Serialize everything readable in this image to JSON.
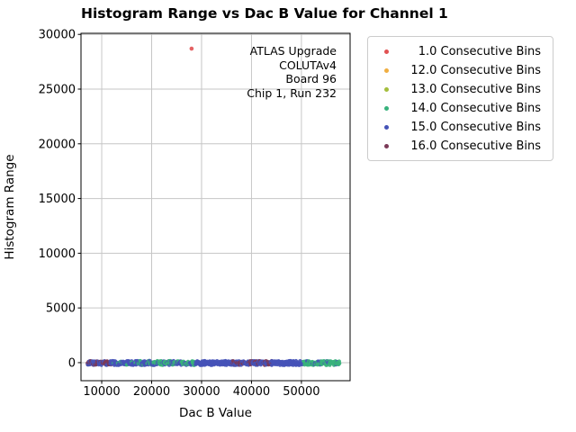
{
  "chart_data": {
    "type": "scatter",
    "title": "Histogram Range vs Dac B Value for Channel 1",
    "xlabel": "Dac B Value",
    "ylabel": "Histogram Range",
    "xlim": [
      5850,
      59750
    ],
    "ylim": [
      -1650,
      30100
    ],
    "x_ticks": [
      10000,
      20000,
      30000,
      40000,
      50000
    ],
    "y_ticks": [
      0,
      5000,
      10000,
      15000,
      20000,
      25000,
      30000
    ],
    "grid": true,
    "grid_color": "#c6c6c6",
    "legend_position": "outside-upper-right",
    "series": [
      {
        "name": "1.0 Consecutive Bins",
        "color": "#e15152",
        "points": [
          [
            28000,
            28700
          ]
        ]
      },
      {
        "name": "12.0 Consecutive Bins",
        "color": "#f0ae41",
        "points": []
      },
      {
        "name": "13.0 Consecutive Bins",
        "color": "#a4be3c",
        "points": []
      },
      {
        "name": "14.0 Consecutive Bins",
        "color": "#38b27c",
        "points": []
      },
      {
        "name": "15.0 Consecutive Bins",
        "color": "#4553b7",
        "points": []
      },
      {
        "name": "16.0 Consecutive Bins",
        "color": "#7b3a58",
        "points": []
      }
    ],
    "band": {
      "description": "dense overlapping points at histogram range ~0 across full DAC sweep",
      "y_values_range": [
        0,
        300
      ],
      "x_range": [
        7200,
        57700
      ],
      "segments": [
        {
          "x0": 7200,
          "x1": 8400,
          "mix": {
            "15.0": 0.5,
            "16.0": 0.5
          }
        },
        {
          "x0": 8400,
          "x1": 11800,
          "mix": {
            "15.0": 0.55,
            "16.0": 0.45
          }
        },
        {
          "x0": 11800,
          "x1": 19400,
          "mix": {
            "15.0": 0.78,
            "14.0": 0.22
          }
        },
        {
          "x0": 19400,
          "x1": 28900,
          "mix": {
            "14.0": 0.6,
            "15.0": 0.4
          }
        },
        {
          "x0": 28900,
          "x1": 36100,
          "mix": {
            "15.0": 1.0
          }
        },
        {
          "x0": 36100,
          "x1": 44100,
          "mix": {
            "15.0": 0.72,
            "16.0": 0.28
          }
        },
        {
          "x0": 44100,
          "x1": 50400,
          "mix": {
            "15.0": 1.0
          }
        },
        {
          "x0": 50400,
          "x1": 57700,
          "mix": {
            "14.0": 0.78,
            "15.0": 0.22
          }
        }
      ]
    },
    "annotation": {
      "lines": [
        "ATLAS Upgrade",
        "COLUTAv4",
        "Board 96",
        "Chip 1, Run 232"
      ]
    }
  }
}
